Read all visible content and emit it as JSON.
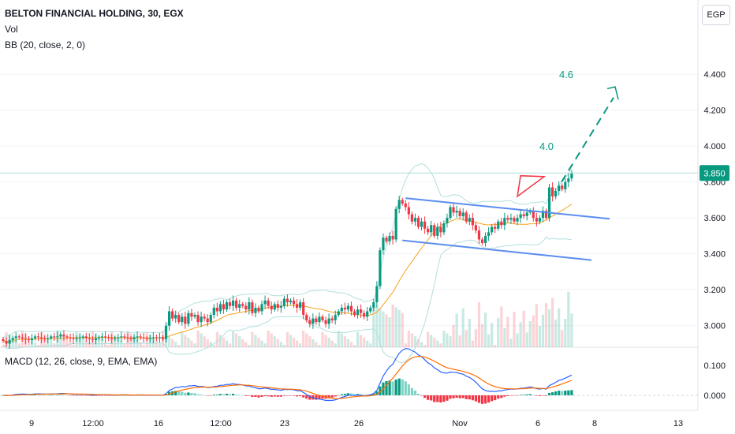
{
  "header": {
    "title": "BELTON FINANCIAL HOLDING, 30, EGX",
    "vol_label": "Vol",
    "bb_label": "BB (20, close, 2, 0)",
    "currency": "EGP"
  },
  "macd_label": "MACD (12, 26, close, 9, EMA, EMA)",
  "colors": {
    "up": "#089981",
    "down": "#f23645",
    "bb": "#b2dfdb",
    "ma": "#f7a21b",
    "channel": "#5b8def",
    "target": "#089981",
    "macd": "#2962ff",
    "signal": "#ff6d00",
    "price_tag": "#089981"
  },
  "chart_data": {
    "type": "candlestick",
    "x_ticks": [
      "9",
      "12:00",
      "16",
      "12:00",
      "23",
      "26",
      "Nov",
      "6",
      "8",
      "13"
    ],
    "y_ticks": [
      "4.400",
      "4.200",
      "4.000",
      "3.800",
      "3.600",
      "3.400",
      "3.200",
      "3.000"
    ],
    "ylim": [
      2.88,
      4.55
    ],
    "last_price": "3.850",
    "annotations": [
      "4.0",
      "4.6"
    ],
    "macd_ticks": [
      "0.100",
      "0.000"
    ],
    "macd_ylim": [
      -0.05,
      0.16
    ],
    "close": [
      2.915,
      2.9,
      2.92,
      2.93,
      2.94,
      2.935,
      2.93,
      2.925,
      2.92,
      2.93,
      2.94,
      2.935,
      2.93,
      2.925,
      2.93,
      2.94,
      2.935,
      2.94,
      2.95,
      2.94,
      2.935,
      2.93,
      2.925,
      2.93,
      2.935,
      2.94,
      2.93,
      2.925,
      2.92,
      2.93,
      2.935,
      2.94,
      2.935,
      2.93,
      2.925,
      2.93,
      2.935,
      2.94,
      2.935,
      2.93,
      2.925,
      2.935,
      2.94,
      2.935,
      2.93,
      2.925,
      2.93,
      2.935,
      2.93,
      2.935,
      2.925,
      3,
      3.08,
      3.04,
      3.06,
      3.02,
      3.05,
      3.01,
      3.07,
      3.05,
      3.06,
      3.02,
      3.05,
      3.04,
      3.02,
      3.06,
      3.1,
      3.08,
      3.12,
      3.09,
      3.13,
      3.11,
      3.14,
      3.1,
      3.12,
      3.11,
      3.09,
      3.13,
      3.07,
      3.1,
      3.08,
      3.12,
      3.14,
      3.11,
      3.09,
      3.12,
      3.1,
      3.11,
      3.15,
      3.13,
      3.14,
      3.12,
      3.1,
      3.13,
      3.06,
      3.03,
      3.01,
      3.04,
      3.02,
      3.05,
      3.03,
      3.01,
      3.04,
      3.03,
      3.06,
      3.08,
      3.1,
      3.09,
      3.11,
      3.08,
      3.06,
      3.09,
      3.07,
      3.05,
      3.08,
      3.1,
      3.13,
      3.22,
      3.42,
      3.49,
      3.47,
      3.5,
      3.48,
      3.65,
      3.7,
      3.68,
      3.66,
      3.62,
      3.58,
      3.6,
      3.55,
      3.58,
      3.54,
      3.52,
      3.56,
      3.5,
      3.55,
      3.52,
      3.57,
      3.6,
      3.66,
      3.63,
      3.64,
      3.61,
      3.63,
      3.58,
      3.6,
      3.56,
      3.53,
      3.48,
      3.46,
      3.5,
      3.52,
      3.55,
      3.54,
      3.58,
      3.56,
      3.6,
      3.59,
      3.6,
      3.58,
      3.6,
      3.62,
      3.61,
      3.63,
      3.64,
      3.6,
      3.58,
      3.6,
      3.64,
      3.6,
      3.77,
      3.72,
      3.75,
      3.78,
      3.76,
      3.8,
      3.82,
      3.85
    ]
  }
}
